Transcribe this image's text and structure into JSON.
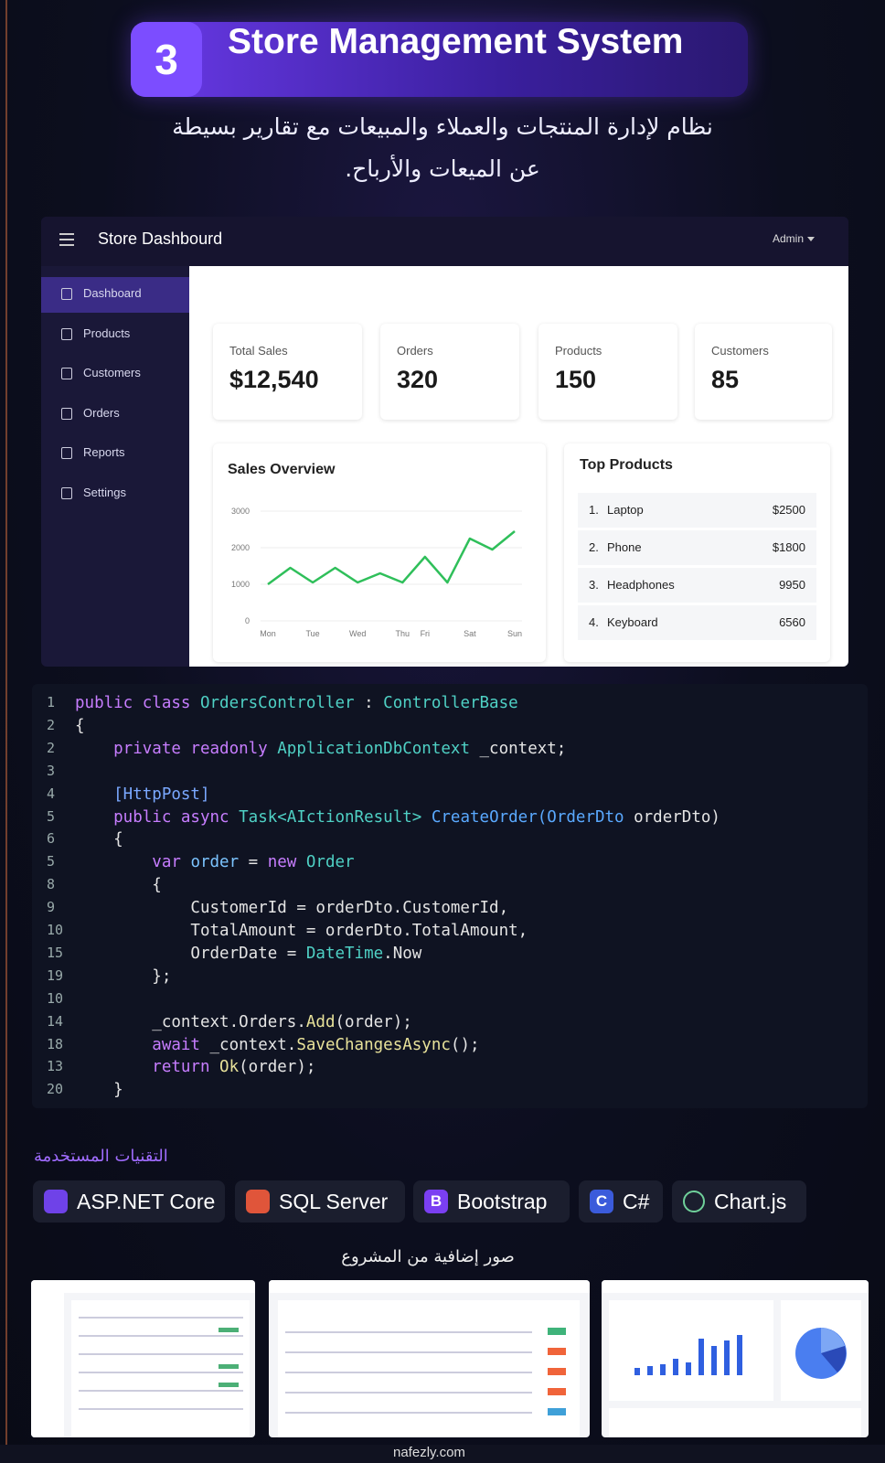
{
  "header": {
    "number": "3",
    "title": "Store Management System",
    "description": [
      "نظام لإدارة المنتجات والعملاء والمبيعات مع تقارير بسيطة",
      "عن الميعات والأرباح."
    ]
  },
  "dashboard": {
    "brand": "Store Dashbourd",
    "user": "Admin",
    "nav": [
      "Dashboard",
      "Products",
      "Customers",
      "Orders",
      "Reports",
      "Settings"
    ],
    "stats": [
      {
        "label": "Total Sales",
        "value": "$12,540"
      },
      {
        "label": "Orders",
        "value": "320"
      },
      {
        "label": "Products",
        "value": "150"
      },
      {
        "label": "Customers",
        "value": "85"
      }
    ],
    "top_products": {
      "title": "Top Products",
      "items": [
        {
          "rank": "1.",
          "name": "Laptop",
          "value": "$2500"
        },
        {
          "rank": "2.",
          "name": "Phone",
          "value": "$1800"
        },
        {
          "rank": "3.",
          "name": "Headphones",
          "value": "9950"
        },
        {
          "rank": "4.",
          "name": "Keyboard",
          "value": "6560"
        }
      ]
    }
  },
  "chart_data": {
    "type": "line",
    "title": "Sales Overview",
    "categories": [
      "Mon",
      null,
      "Tue",
      null,
      "Wed",
      null,
      "Thu",
      "Fri",
      null,
      "Sat",
      null,
      "Sun"
    ],
    "values": [
      1000,
      1450,
      1050,
      1450,
      1050,
      1300,
      1050,
      1750,
      1050,
      2250,
      1950,
      2450
    ],
    "color": "#2fbf5a",
    "ylim": [
      0,
      3000
    ],
    "yticks": [
      0,
      1000,
      2000,
      3000
    ],
    "grid": true
  },
  "code": {
    "lines": [
      {
        "n": "1",
        "tokens": [
          {
            "t": "public class ",
            "c": "#c77dff"
          },
          {
            "t": "OrdersController",
            "c": "#4fd1c5"
          },
          {
            "t": " : ",
            "c": "#e4e4e4"
          },
          {
            "t": "ControllerBase",
            "c": "#4fd1c5"
          }
        ]
      },
      {
        "n": "2",
        "tokens": [
          {
            "t": "{",
            "c": "#e4e4e4"
          }
        ]
      },
      {
        "n": "2",
        "tokens": [
          {
            "t": "    private readonly ",
            "c": "#c77dff"
          },
          {
            "t": "ApplicationDbContext",
            "c": "#4fd1c5"
          },
          {
            "t": " _context;",
            "c": "#e4e4e4"
          }
        ]
      },
      {
        "n": "3",
        "tokens": []
      },
      {
        "n": "4",
        "tokens": [
          {
            "t": "    [HttpPost]",
            "c": "#7aa8ff"
          }
        ]
      },
      {
        "n": "5",
        "tokens": [
          {
            "t": "    public async ",
            "c": "#c77dff"
          },
          {
            "t": "Task<AIctionResult>",
            "c": "#4fd1c5"
          },
          {
            "t": " ",
            "c": "#e4e4e4"
          },
          {
            "t": "CreateOrder(OrderDto",
            "c": "#5aa9ff"
          },
          {
            "t": " orderDto)",
            "c": "#e4e4e4"
          }
        ]
      },
      {
        "n": "6",
        "tokens": [
          {
            "t": "    {",
            "c": "#e4e4e4"
          }
        ]
      },
      {
        "n": "5",
        "tokens": [
          {
            "t": "        var ",
            "c": "#c77dff"
          },
          {
            "t": "order",
            "c": "#7cc4ff"
          },
          {
            "t": " = ",
            "c": "#e4e4e4"
          },
          {
            "t": "new ",
            "c": "#c77dff"
          },
          {
            "t": "Order",
            "c": "#4fd1c5"
          }
        ]
      },
      {
        "n": "8",
        "tokens": [
          {
            "t": "        {",
            "c": "#e4e4e4"
          }
        ]
      },
      {
        "n": "9",
        "tokens": [
          {
            "t": "            CustomerId = orderDto.CustomerId,",
            "c": "#e4e4e4"
          }
        ]
      },
      {
        "n": "10",
        "tokens": [
          {
            "t": "            TotalAmount = orderDto.TotalAmount,",
            "c": "#e4e4e4"
          }
        ]
      },
      {
        "n": "15",
        "tokens": [
          {
            "t": "            OrderDate = ",
            "c": "#e4e4e4"
          },
          {
            "t": "DateTime",
            "c": "#4fd1c5"
          },
          {
            "t": ".Now",
            "c": "#e4e4e4"
          }
        ]
      },
      {
        "n": "19",
        "tokens": [
          {
            "t": "        };",
            "c": "#e4e4e4"
          }
        ]
      },
      {
        "n": "10",
        "tokens": []
      },
      {
        "n": "14",
        "tokens": [
          {
            "t": "        _context.Orders.",
            "c": "#e4e4e4"
          },
          {
            "t": "Add",
            "c": "#e8e29a"
          },
          {
            "t": "(order);",
            "c": "#e4e4e4"
          }
        ]
      },
      {
        "n": "18",
        "tokens": [
          {
            "t": "        await ",
            "c": "#c77dff"
          },
          {
            "t": "_context.",
            "c": "#e4e4e4"
          },
          {
            "t": "SaveChangesAsync",
            "c": "#e8e29a"
          },
          {
            "t": "();",
            "c": "#e4e4e4"
          }
        ]
      },
      {
        "n": "13",
        "tokens": [
          {
            "t": "        return ",
            "c": "#c77dff"
          },
          {
            "t": "Ok",
            "c": "#e8e29a"
          },
          {
            "t": "(order);",
            "c": "#e4e4e4"
          }
        ]
      },
      {
        "n": "20",
        "tokens": [
          {
            "t": "    }",
            "c": "#e4e4e4"
          }
        ]
      }
    ]
  },
  "tech": {
    "title": "التقنيات المستخدمة",
    "items": [
      {
        "name": "ASP.NET Core",
        "color": "#6f42e8"
      },
      {
        "name": "SQL Server",
        "color": "#e0553a"
      },
      {
        "icon": "B",
        "name": "Bootstrap",
        "color": "#7b3ff2"
      },
      {
        "icon": "C",
        "name": "C#",
        "color": "#3b5bdb"
      },
      {
        "name": "Chart.js",
        "color": "#1b1e2e"
      }
    ]
  },
  "gallery": {
    "title": "صور إضافية من المشروع"
  },
  "watermark": "nafezly.com"
}
